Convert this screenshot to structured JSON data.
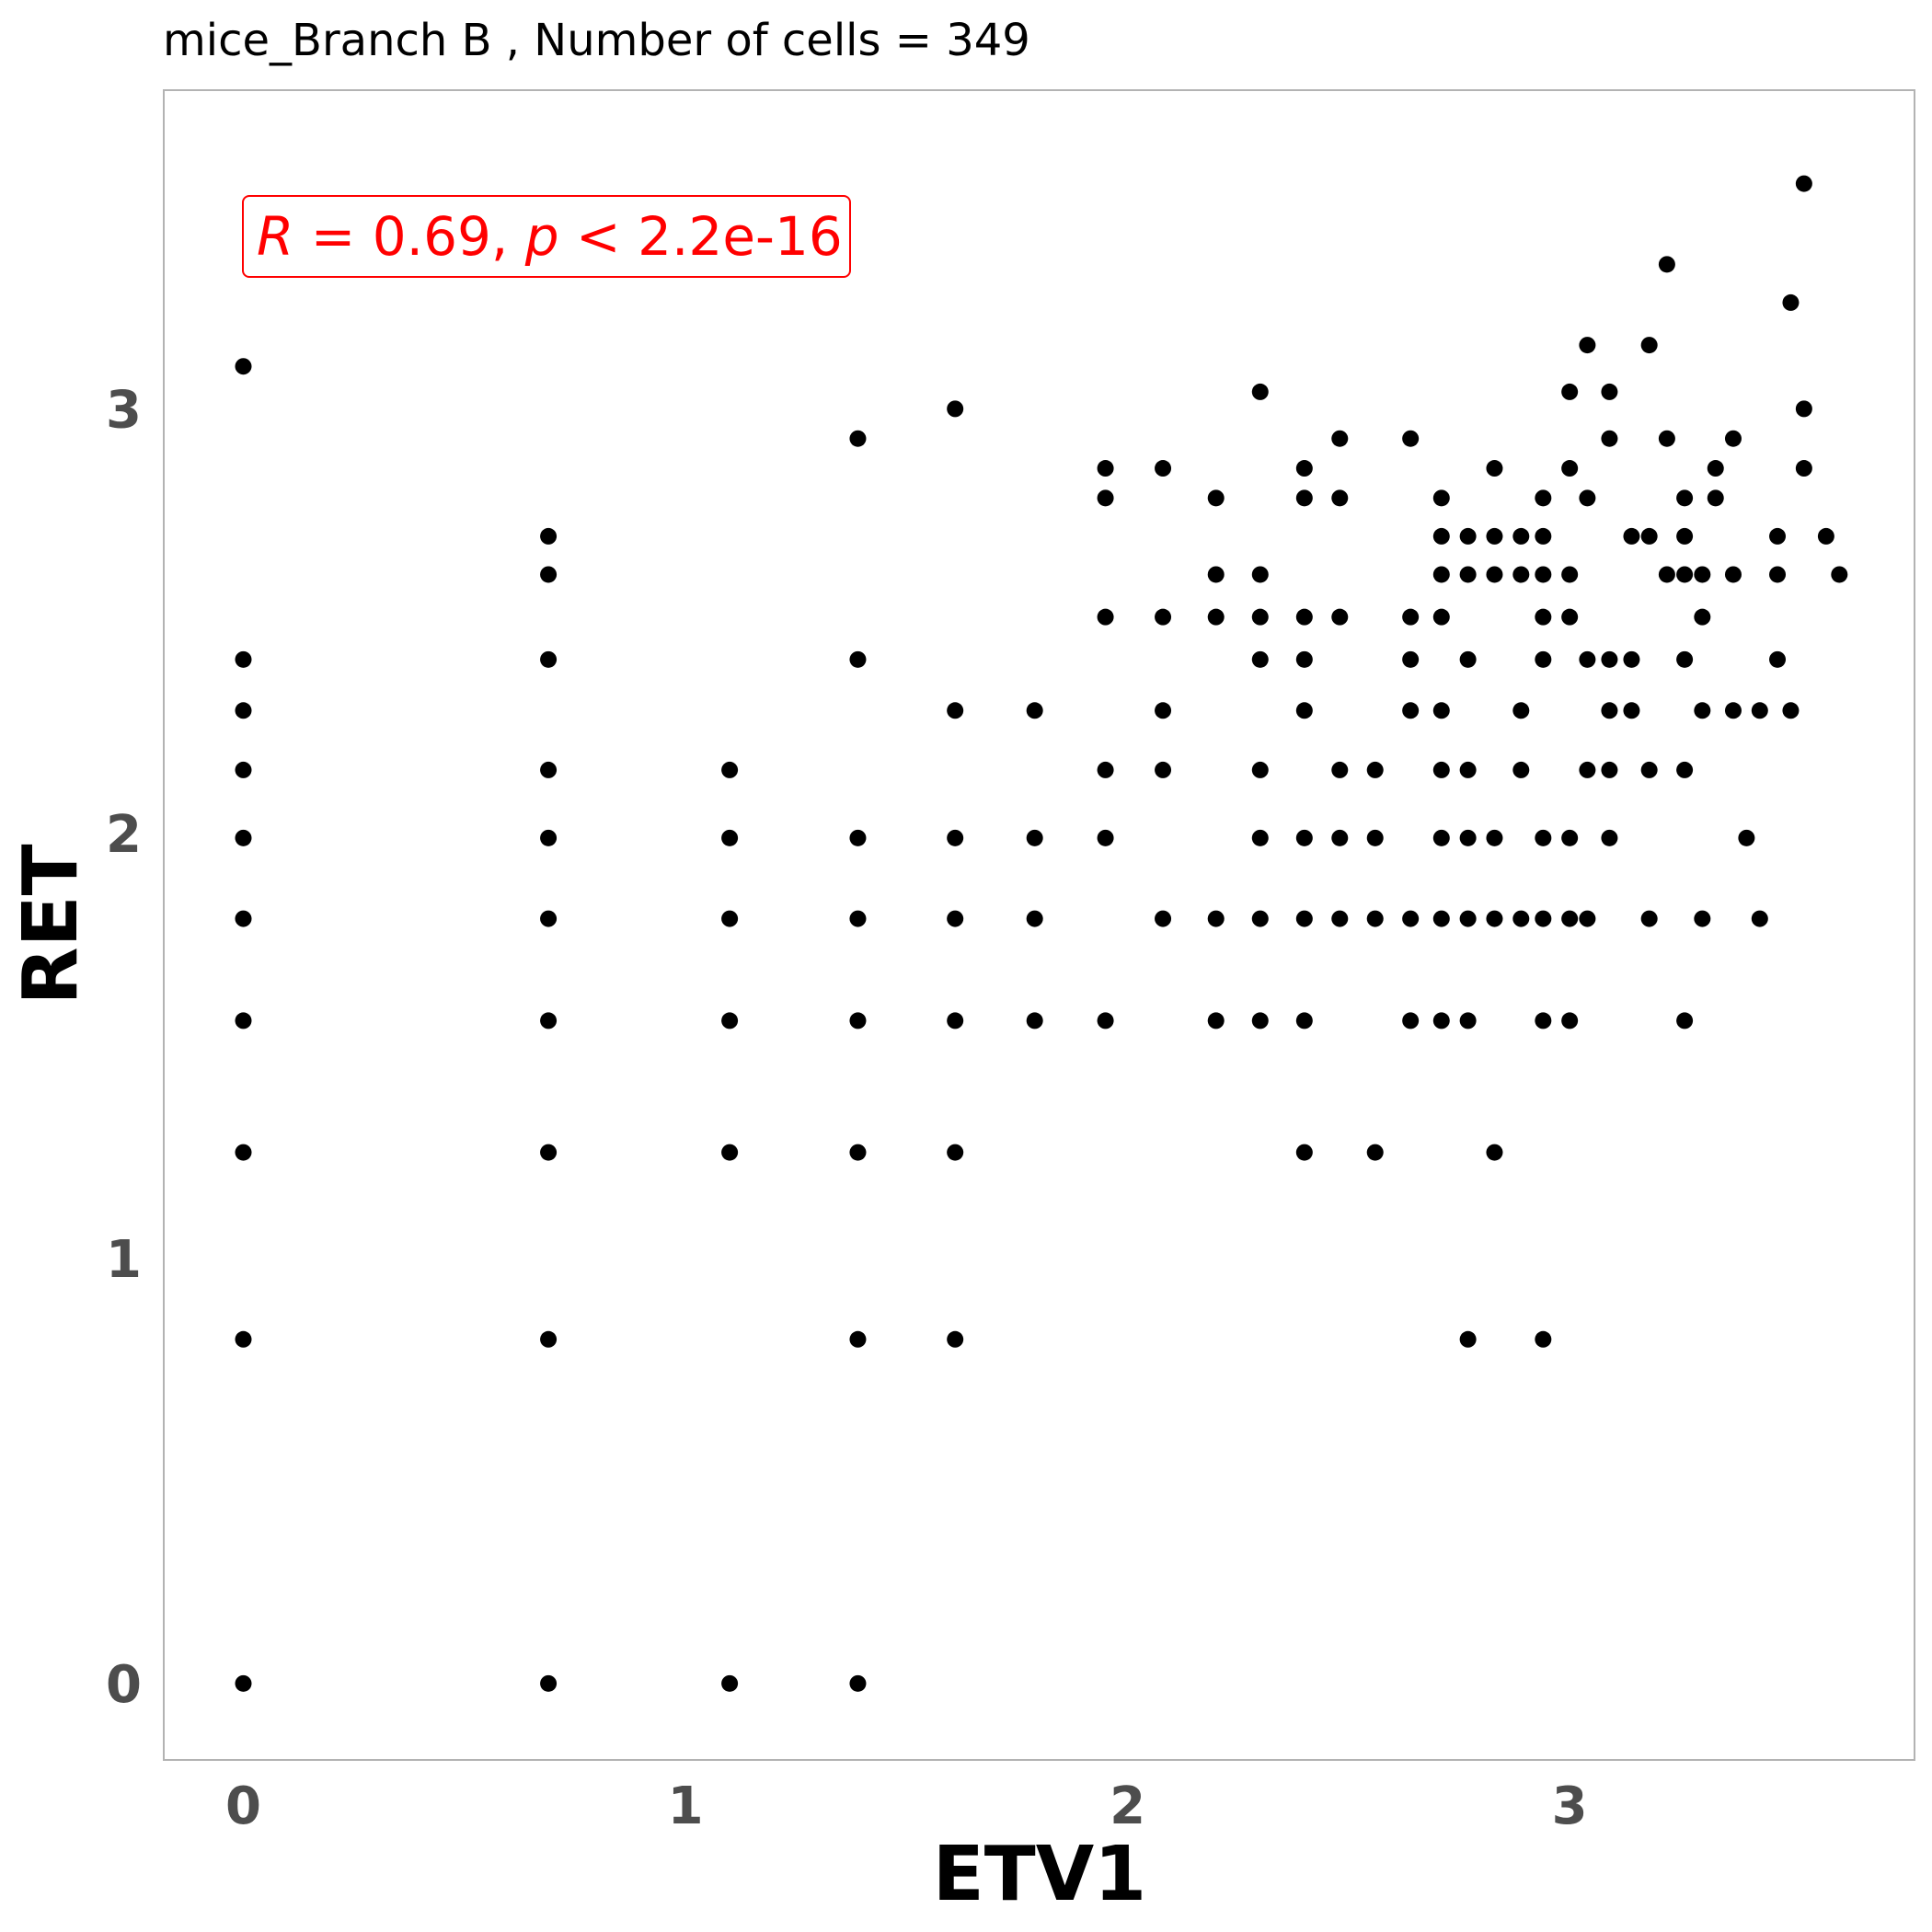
{
  "chart_data": {
    "type": "scatter",
    "title": "mice_Branch B , Number of cells =  349",
    "xlabel": "ETV1",
    "ylabel": "RET",
    "xlim": [
      -0.18,
      3.78
    ],
    "ylim": [
      -0.18,
      3.75
    ],
    "xticks": [
      0,
      1,
      2,
      3
    ],
    "yticks": [
      0,
      1,
      2,
      3
    ],
    "grid": false,
    "annotation": {
      "R_symbol": "R",
      "R_value": " = 0.69, ",
      "p_symbol": "p",
      "p_value": " < 2.2e-16",
      "color": "#ff0000"
    },
    "point_color": "#000000",
    "points": [
      [
        0,
        0
      ],
      [
        0,
        0.81
      ],
      [
        0,
        1.25
      ],
      [
        0,
        1.56
      ],
      [
        0,
        1.8
      ],
      [
        0,
        1.99
      ],
      [
        0,
        2.15
      ],
      [
        0,
        2.29
      ],
      [
        0,
        2.41
      ],
      [
        0,
        3.1
      ],
      [
        0.69,
        0
      ],
      [
        0.69,
        0.81
      ],
      [
        0.69,
        1.25
      ],
      [
        0.69,
        1.56
      ],
      [
        0.69,
        1.8
      ],
      [
        0.69,
        1.99
      ],
      [
        0.69,
        2.15
      ],
      [
        0.69,
        2.41
      ],
      [
        0.69,
        2.61
      ],
      [
        0.69,
        2.7
      ],
      [
        1.1,
        0
      ],
      [
        1.1,
        1.25
      ],
      [
        1.1,
        1.56
      ],
      [
        1.1,
        1.8
      ],
      [
        1.1,
        1.99
      ],
      [
        1.1,
        2.15
      ],
      [
        1.39,
        0
      ],
      [
        1.39,
        0.81
      ],
      [
        1.39,
        1.25
      ],
      [
        1.39,
        1.56
      ],
      [
        1.39,
        1.8
      ],
      [
        1.39,
        1.99
      ],
      [
        1.39,
        2.41
      ],
      [
        1.39,
        2.93
      ],
      [
        1.61,
        0.81
      ],
      [
        1.61,
        1.25
      ],
      [
        1.61,
        1.56
      ],
      [
        1.61,
        1.8
      ],
      [
        1.61,
        1.99
      ],
      [
        1.61,
        2.29
      ],
      [
        1.61,
        3.0
      ],
      [
        1.79,
        1.56
      ],
      [
        1.79,
        1.8
      ],
      [
        1.79,
        1.99
      ],
      [
        1.79,
        2.29
      ],
      [
        1.95,
        1.56
      ],
      [
        1.95,
        1.99
      ],
      [
        1.95,
        2.15
      ],
      [
        1.95,
        2.51
      ],
      [
        1.95,
        2.79
      ],
      [
        1.95,
        2.86
      ],
      [
        2.08,
        1.8
      ],
      [
        2.08,
        2.15
      ],
      [
        2.08,
        2.29
      ],
      [
        2.08,
        2.51
      ],
      [
        2.08,
        2.86
      ],
      [
        2.2,
        1.56
      ],
      [
        2.2,
        1.8
      ],
      [
        2.2,
        2.51
      ],
      [
        2.2,
        2.61
      ],
      [
        2.2,
        2.79
      ],
      [
        2.3,
        1.56
      ],
      [
        2.3,
        1.8
      ],
      [
        2.3,
        1.99
      ],
      [
        2.3,
        2.15
      ],
      [
        2.3,
        2.41
      ],
      [
        2.3,
        2.51
      ],
      [
        2.3,
        2.61
      ],
      [
        2.3,
        3.04
      ],
      [
        2.4,
        1.25
      ],
      [
        2.4,
        1.56
      ],
      [
        2.4,
        1.8
      ],
      [
        2.4,
        1.99
      ],
      [
        2.4,
        2.29
      ],
      [
        2.4,
        2.41
      ],
      [
        2.4,
        2.51
      ],
      [
        2.4,
        2.79
      ],
      [
        2.4,
        2.86
      ],
      [
        2.48,
        1.8
      ],
      [
        2.48,
        1.99
      ],
      [
        2.48,
        2.15
      ],
      [
        2.48,
        2.51
      ],
      [
        2.48,
        2.79
      ],
      [
        2.48,
        2.93
      ],
      [
        2.56,
        1.25
      ],
      [
        2.56,
        1.8
      ],
      [
        2.56,
        1.99
      ],
      [
        2.56,
        2.15
      ],
      [
        2.64,
        1.56
      ],
      [
        2.64,
        1.8
      ],
      [
        2.64,
        2.29
      ],
      [
        2.64,
        2.41
      ],
      [
        2.64,
        2.51
      ],
      [
        2.64,
        2.93
      ],
      [
        2.71,
        1.56
      ],
      [
        2.71,
        1.8
      ],
      [
        2.71,
        1.99
      ],
      [
        2.71,
        2.15
      ],
      [
        2.71,
        2.29
      ],
      [
        2.71,
        2.51
      ],
      [
        2.71,
        2.61
      ],
      [
        2.71,
        2.7
      ],
      [
        2.71,
        2.79
      ],
      [
        2.77,
        0.81
      ],
      [
        2.77,
        1.56
      ],
      [
        2.77,
        1.8
      ],
      [
        2.77,
        1.99
      ],
      [
        2.77,
        2.15
      ],
      [
        2.77,
        2.41
      ],
      [
        2.77,
        2.61
      ],
      [
        2.77,
        2.7
      ],
      [
        2.83,
        1.25
      ],
      [
        2.83,
        1.8
      ],
      [
        2.83,
        1.99
      ],
      [
        2.83,
        2.61
      ],
      [
        2.83,
        2.7
      ],
      [
        2.83,
        2.86
      ],
      [
        2.89,
        1.8
      ],
      [
        2.89,
        2.15
      ],
      [
        2.89,
        2.29
      ],
      [
        2.89,
        2.61
      ],
      [
        2.89,
        2.7
      ],
      [
        2.94,
        0.81
      ],
      [
        2.94,
        1.56
      ],
      [
        2.94,
        1.8
      ],
      [
        2.94,
        1.99
      ],
      [
        2.94,
        2.41
      ],
      [
        2.94,
        2.51
      ],
      [
        2.94,
        2.61
      ],
      [
        2.94,
        2.7
      ],
      [
        2.94,
        2.79
      ],
      [
        3.0,
        1.56
      ],
      [
        3.0,
        1.8
      ],
      [
        3.0,
        1.99
      ],
      [
        3.0,
        2.51
      ],
      [
        3.0,
        2.61
      ],
      [
        3.0,
        2.86
      ],
      [
        3.0,
        3.04
      ],
      [
        3.04,
        1.8
      ],
      [
        3.04,
        2.15
      ],
      [
        3.04,
        2.41
      ],
      [
        3.04,
        2.79
      ],
      [
        3.04,
        3.15
      ],
      [
        3.09,
        1.99
      ],
      [
        3.09,
        2.15
      ],
      [
        3.09,
        2.29
      ],
      [
        3.09,
        2.41
      ],
      [
        3.09,
        2.93
      ],
      [
        3.09,
        3.04
      ],
      [
        3.14,
        2.29
      ],
      [
        3.14,
        2.41
      ],
      [
        3.14,
        2.7
      ],
      [
        3.18,
        1.8
      ],
      [
        3.18,
        2.15
      ],
      [
        3.18,
        2.7
      ],
      [
        3.18,
        3.15
      ],
      [
        3.22,
        2.61
      ],
      [
        3.22,
        2.93
      ],
      [
        3.22,
        3.34
      ],
      [
        3.26,
        1.56
      ],
      [
        3.26,
        2.15
      ],
      [
        3.26,
        2.41
      ],
      [
        3.26,
        2.61
      ],
      [
        3.26,
        2.7
      ],
      [
        3.26,
        2.79
      ],
      [
        3.3,
        1.8
      ],
      [
        3.3,
        2.29
      ],
      [
        3.3,
        2.51
      ],
      [
        3.3,
        2.61
      ],
      [
        3.33,
        2.79
      ],
      [
        3.33,
        2.86
      ],
      [
        3.37,
        2.29
      ],
      [
        3.37,
        2.61
      ],
      [
        3.37,
        2.93
      ],
      [
        3.4,
        1.99
      ],
      [
        3.43,
        1.8
      ],
      [
        3.43,
        2.29
      ],
      [
        3.47,
        2.41
      ],
      [
        3.47,
        2.61
      ],
      [
        3.47,
        2.7
      ],
      [
        3.5,
        2.29
      ],
      [
        3.5,
        3.25
      ],
      [
        3.53,
        2.86
      ],
      [
        3.53,
        3.0
      ],
      [
        3.53,
        3.53
      ],
      [
        3.58,
        2.7
      ],
      [
        3.61,
        2.61
      ]
    ]
  }
}
